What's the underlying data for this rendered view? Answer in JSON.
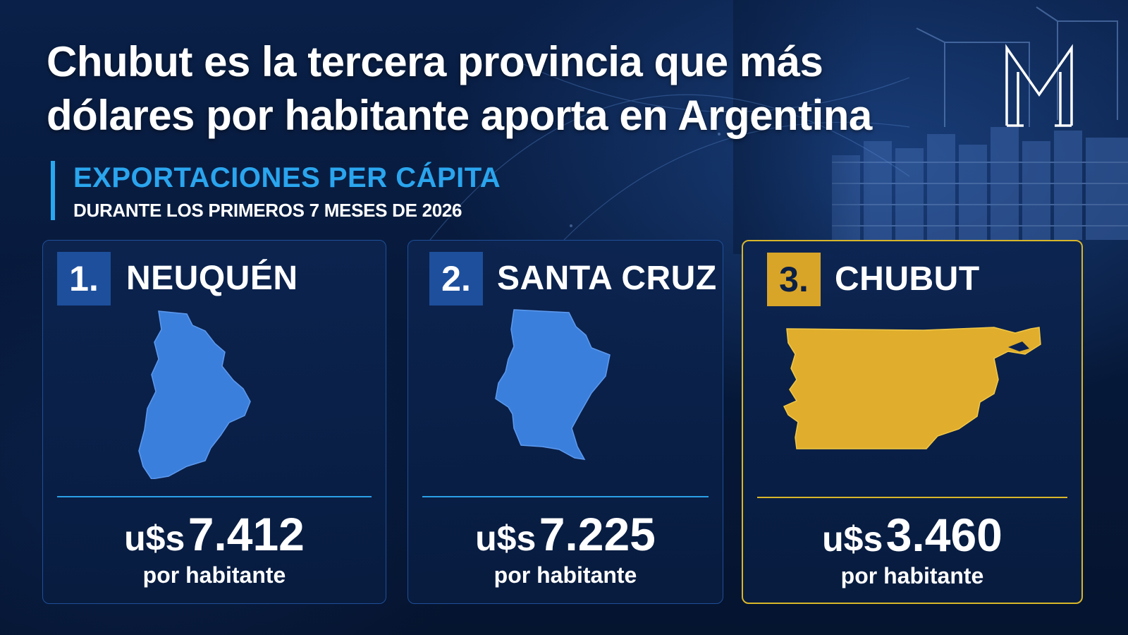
{
  "headline": {
    "line1": "Chubut es la tercera provincia que más",
    "line2": "dólares por habitante aporta en Argentina"
  },
  "logo": {
    "icon": "m-monogram-logo"
  },
  "subtitle": {
    "title": "EXPORTACIONES PER CÁPITA",
    "text": "DURANTE LOS PRIMEROS 7 MESES DE 2026"
  },
  "colors": {
    "background": "#071a3a",
    "accent_blue": "#2aa5ee",
    "map_blue": "#3b7fdc",
    "gold": "#d9a528"
  },
  "cards": [
    {
      "rank": "1.",
      "province": "NEUQUÉN",
      "currency": "u$s",
      "value": "7.412",
      "unit": "por habitante",
      "highlight": false,
      "map_icon": "neuquen-map"
    },
    {
      "rank": "2.",
      "province": "SANTA CRUZ",
      "currency": "u$s",
      "value": "7.225",
      "unit": "por habitante",
      "highlight": false,
      "map_icon": "santa-cruz-map"
    },
    {
      "rank": "3.",
      "province": "CHUBUT",
      "currency": "u$s",
      "value": "3.460",
      "unit": "por habitante",
      "highlight": true,
      "map_icon": "chubut-map"
    }
  ]
}
